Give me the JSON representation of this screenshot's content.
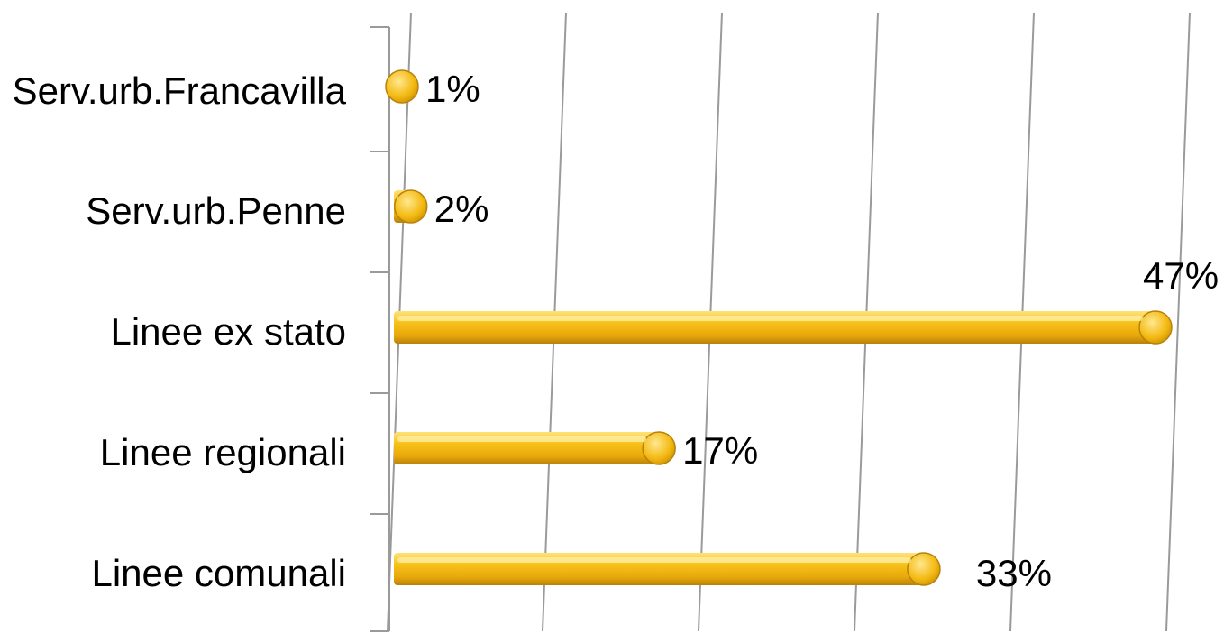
{
  "chart_data": {
    "type": "bar",
    "orientation": "horizontal",
    "categories": [
      "Serv.urb.Francavilla",
      "Serv.urb.Penne",
      "Linee ex stato",
      "Linee regionali",
      "Linee comunali"
    ],
    "values": [
      1,
      2,
      47,
      17,
      33
    ],
    "value_labels": [
      "1%",
      "2%",
      "47%",
      "17%",
      "33%"
    ],
    "xlim": [
      0,
      50
    ],
    "grid": true,
    "legend": "none",
    "colors": {
      "bar": "#f2b50c",
      "bar_light": "#ffe27a",
      "bar_dark": "#b8820a"
    }
  }
}
